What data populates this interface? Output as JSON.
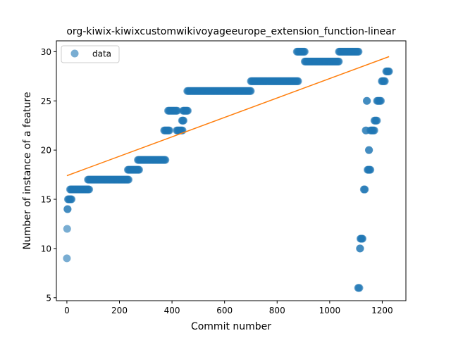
{
  "chart_data": {
    "type": "scatter",
    "title": "org-kiwix-kiwixcustomwikivoyageeurope_extension_function-linear",
    "xlabel": "Commit number",
    "ylabel": "Number of instance of a feature",
    "xlim": [
      -40,
      1290
    ],
    "ylim": [
      4.7,
      31.1
    ],
    "xticks": [
      0,
      200,
      400,
      600,
      800,
      1000,
      1200
    ],
    "yticks": [
      5,
      10,
      15,
      20,
      25,
      30
    ],
    "grid": false,
    "legend": {
      "position": "top-left",
      "entries": [
        "data"
      ]
    },
    "colors": {
      "points": "#1f77b4",
      "fit": "#ff7f0e"
    },
    "segments": [
      {
        "x_start": 0,
        "x_end": 0,
        "y": 9
      },
      {
        "x_start": 1,
        "x_end": 1,
        "y": 12
      },
      {
        "x_start": 2,
        "x_end": 3,
        "y": 14
      },
      {
        "x_start": 4,
        "x_end": 18,
        "y": 15
      },
      {
        "x_start": 12,
        "x_end": 85,
        "y": 16
      },
      {
        "x_start": 80,
        "x_end": 235,
        "y": 17
      },
      {
        "x_start": 232,
        "x_end": 275,
        "y": 18
      },
      {
        "x_start": 270,
        "x_end": 375,
        "y": 19
      },
      {
        "x_start": 370,
        "x_end": 390,
        "y": 22
      },
      {
        "x_start": 385,
        "x_end": 420,
        "y": 24
      },
      {
        "x_start": 418,
        "x_end": 440,
        "y": 22
      },
      {
        "x_start": 438,
        "x_end": 444,
        "y": 23
      },
      {
        "x_start": 442,
        "x_end": 460,
        "y": 24
      },
      {
        "x_start": 458,
        "x_end": 700,
        "y": 26
      },
      {
        "x_start": 700,
        "x_end": 880,
        "y": 27
      },
      {
        "x_start": 875,
        "x_end": 905,
        "y": 30
      },
      {
        "x_start": 905,
        "x_end": 1035,
        "y": 29
      },
      {
        "x_start": 1035,
        "x_end": 1110,
        "y": 30
      },
      {
        "x_start": 1108,
        "x_end": 1113,
        "y": 6
      },
      {
        "x_start": 1115,
        "x_end": 1116,
        "y": 10
      },
      {
        "x_start": 1117,
        "x_end": 1125,
        "y": 11
      },
      {
        "x_start": 1130,
        "x_end": 1134,
        "y": 16
      },
      {
        "x_start": 1137,
        "x_end": 1139,
        "y": 22
      },
      {
        "x_start": 1141,
        "x_end": 1142,
        "y": 25
      },
      {
        "x_start": 1144,
        "x_end": 1155,
        "y": 18
      },
      {
        "x_start": 1149,
        "x_end": 1150,
        "y": 20
      },
      {
        "x_start": 1155,
        "x_end": 1170,
        "y": 22
      },
      {
        "x_start": 1170,
        "x_end": 1180,
        "y": 23
      },
      {
        "x_start": 1180,
        "x_end": 1195,
        "y": 25
      },
      {
        "x_start": 1198,
        "x_end": 1210,
        "y": 27
      },
      {
        "x_start": 1215,
        "x_end": 1226,
        "y": 28
      }
    ],
    "fit_line": {
      "x": [
        0,
        1226
      ],
      "y": [
        17.4,
        29.5
      ]
    }
  }
}
